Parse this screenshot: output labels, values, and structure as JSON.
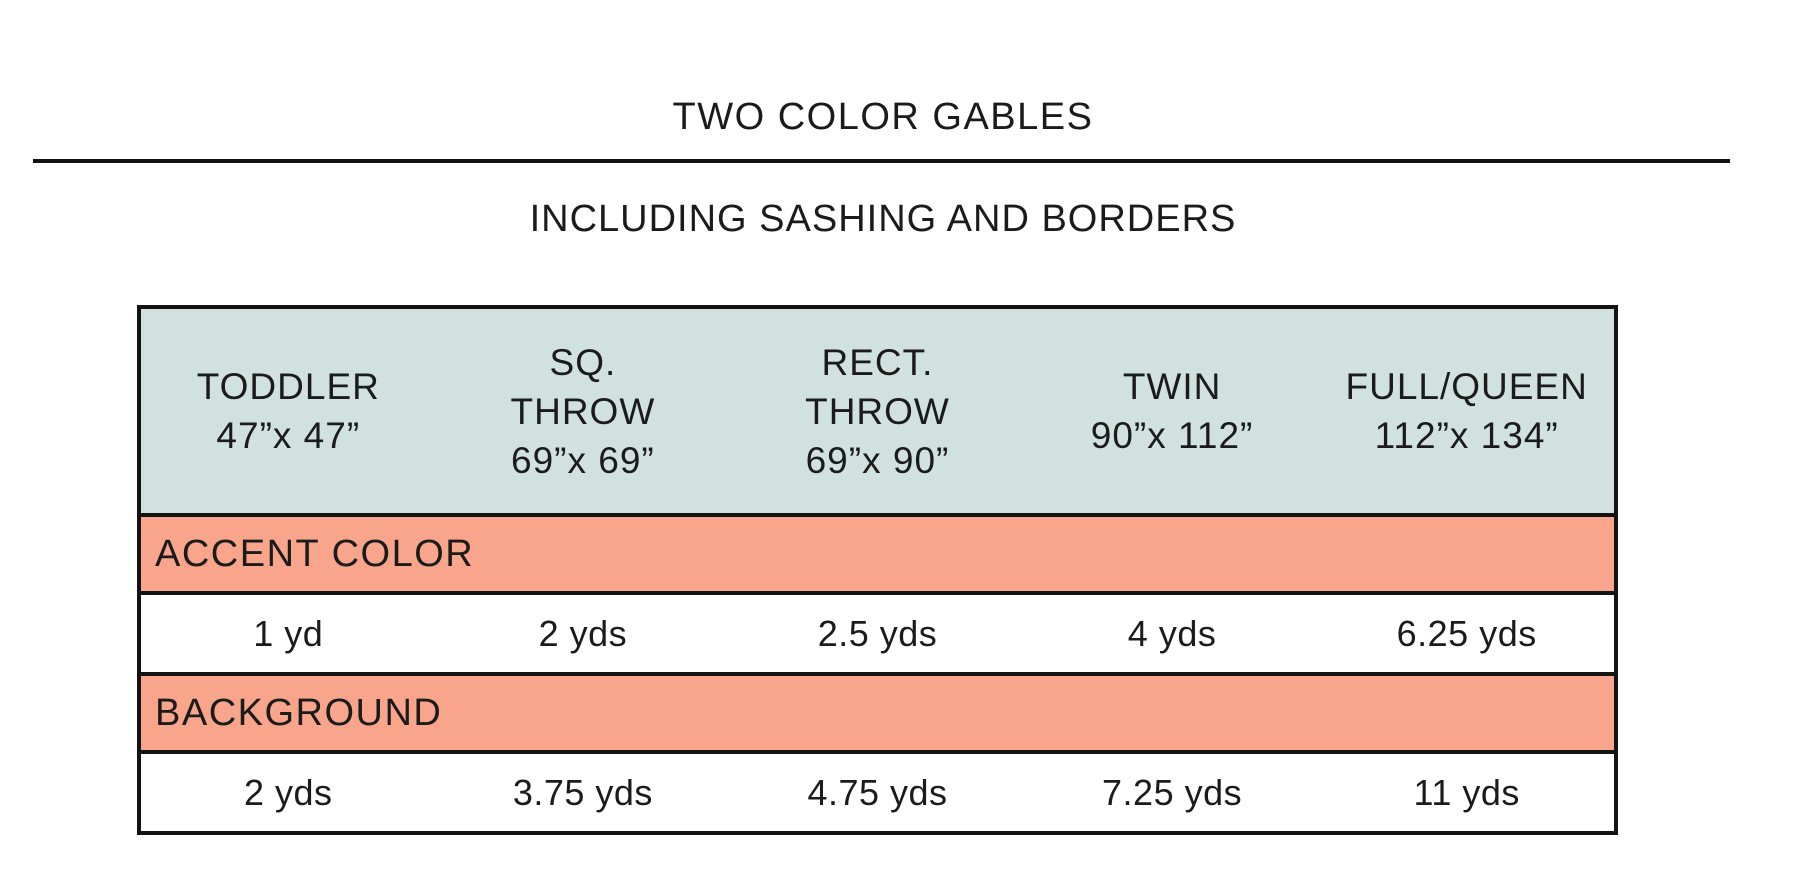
{
  "page": {
    "title": "TWO COLOR GABLES",
    "subtitle": "INCLUDING SASHING AND BORDERS"
  },
  "colors": {
    "header_bg": "#d1e1df",
    "section_bg": "#f9a58c",
    "border": "#131313",
    "text": "#1b1b1b"
  },
  "table": {
    "columns": [
      {
        "line1": "TODDLER",
        "line2": "",
        "size": "47”x 47”"
      },
      {
        "line1": "SQ.",
        "line2": "THROW",
        "size": "69”x 69”"
      },
      {
        "line1": "RECT.",
        "line2": "THROW",
        "size": "69”x 90”"
      },
      {
        "line1": "TWIN",
        "line2": "",
        "size": "90”x 112”"
      },
      {
        "line1": "FULL/QUEEN",
        "line2": "",
        "size": "112”x 134”"
      }
    ],
    "sections": [
      {
        "label": "ACCENT COLOR",
        "values": [
          "1 yd",
          "2 yds",
          "2.5 yds",
          "4 yds",
          "6.25 yds"
        ]
      },
      {
        "label": "BACKGROUND",
        "values": [
          "2 yds",
          "3.75 yds",
          "4.75 yds",
          "7.25 yds",
          "11 yds"
        ]
      }
    ]
  }
}
